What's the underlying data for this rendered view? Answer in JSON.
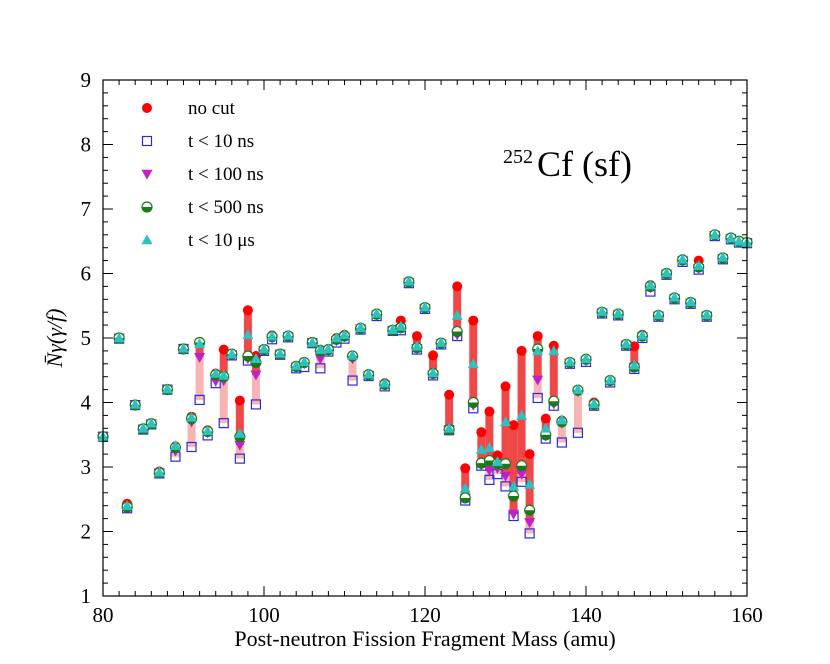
{
  "chart_data": {
    "type": "scatter",
    "title": "",
    "xlabel": "Post-neutron Fission Fragment Mass (amu)",
    "ylabel": "N̄γ(γ/f)",
    "xlim": [
      80,
      160
    ],
    "ylim": [
      1,
      9
    ],
    "xticks": [
      80,
      100,
      120,
      140,
      160
    ],
    "yticks": [
      1,
      2,
      3,
      4,
      5,
      6,
      7,
      8,
      9
    ],
    "annotation": {
      "superscript": "252",
      "text": "Cf (sf)"
    },
    "legend_position": "top-left",
    "x": [
      80,
      82,
      83,
      84,
      85,
      86,
      87,
      88,
      89,
      90,
      91,
      92,
      93,
      94,
      95,
      96,
      97,
      98,
      99,
      100,
      101,
      102,
      103,
      104,
      105,
      106,
      107,
      108,
      109,
      110,
      111,
      112,
      113,
      114,
      115,
      116,
      117,
      118,
      119,
      120,
      121,
      122,
      123,
      124,
      125,
      126,
      127,
      128,
      129,
      130,
      131,
      132,
      133,
      134,
      135,
      136,
      137,
      138,
      139,
      140,
      141,
      142,
      143,
      144,
      145,
      146,
      147,
      148,
      149,
      150,
      151,
      152,
      153,
      154,
      155,
      156,
      157,
      158,
      159,
      160
    ],
    "series": [
      {
        "name": "no cut",
        "marker": "filled-circle",
        "color": "#ff0000",
        "values": [
          3.47,
          5.0,
          2.43,
          3.97,
          3.6,
          3.68,
          2.93,
          4.21,
          3.32,
          4.84,
          3.78,
          4.92,
          3.57,
          4.45,
          4.82,
          4.75,
          4.03,
          5.43,
          4.72,
          4.83,
          5.04,
          4.76,
          5.04,
          4.57,
          4.63,
          4.93,
          4.82,
          4.83,
          5.0,
          5.05,
          4.73,
          5.16,
          4.44,
          5.38,
          4.3,
          5.12,
          5.27,
          5.88,
          5.03,
          5.48,
          4.73,
          4.92,
          4.12,
          5.8,
          2.98,
          5.27,
          3.54,
          3.86,
          3.18,
          4.25,
          3.65,
          4.8,
          3.2,
          5.03,
          3.75,
          4.88,
          3.72,
          4.62,
          4.2,
          4.68,
          4.0,
          5.4,
          4.35,
          5.38,
          4.9,
          4.87,
          5.05,
          5.82,
          5.35,
          6.0,
          5.62,
          6.22,
          5.56,
          6.2,
          5.35,
          6.6,
          6.25,
          6.55,
          6.5,
          6.48
        ]
      },
      {
        "name": "t < 10 ns",
        "marker": "open-square",
        "color": "#2a2ad8",
        "values": [
          3.47,
          4.99,
          2.36,
          3.96,
          3.58,
          3.66,
          2.9,
          4.2,
          3.16,
          4.83,
          3.31,
          4.04,
          3.49,
          4.3,
          3.68,
          4.73,
          3.13,
          4.65,
          3.97,
          4.8,
          4.98,
          4.74,
          5.01,
          4.53,
          4.55,
          4.92,
          4.53,
          4.79,
          4.93,
          4.99,
          4.34,
          5.13,
          4.41,
          5.34,
          4.25,
          5.11,
          5.12,
          5.85,
          4.82,
          5.45,
          4.42,
          4.9,
          3.57,
          5.03,
          2.48,
          3.91,
          3.02,
          2.8,
          2.89,
          2.7,
          2.24,
          2.77,
          1.97,
          4.07,
          3.44,
          3.95,
          3.38,
          4.6,
          3.53,
          4.63,
          3.95,
          5.38,
          4.31,
          5.35,
          4.88,
          4.52,
          5.0,
          5.72,
          5.33,
          5.98,
          5.6,
          6.18,
          5.53,
          6.06,
          5.33,
          6.58,
          6.22,
          6.53,
          6.48,
          6.47
        ]
      },
      {
        "name": "t < 100 ns",
        "marker": "filled-triangle-down",
        "color": "#c020c8",
        "values": [
          3.47,
          5.0,
          2.38,
          3.96,
          3.59,
          3.67,
          2.91,
          4.2,
          3.25,
          4.83,
          3.7,
          4.7,
          3.53,
          4.33,
          4.34,
          4.74,
          3.34,
          4.68,
          4.43,
          4.81,
          5.0,
          4.75,
          5.02,
          4.55,
          4.6,
          4.92,
          4.68,
          4.81,
          4.96,
          5.02,
          4.68,
          5.14,
          4.42,
          5.36,
          4.27,
          5.11,
          5.15,
          5.86,
          4.84,
          5.46,
          4.43,
          4.91,
          3.57,
          5.05,
          2.52,
          3.96,
          3.03,
          2.95,
          2.98,
          2.86,
          2.27,
          2.89,
          2.14,
          4.35,
          3.48,
          3.98,
          3.68,
          4.61,
          4.17,
          4.65,
          3.96,
          5.39,
          4.32,
          5.36,
          4.89,
          4.55,
          5.02,
          5.78,
          5.34,
          5.99,
          5.61,
          6.2,
          5.54,
          6.08,
          5.34,
          6.59,
          6.23,
          6.54,
          6.49,
          6.47
        ]
      },
      {
        "name": "t < 500 ns",
        "marker": "half-filled-circle",
        "color": "#1a7a1a",
        "values": [
          3.47,
          5.0,
          2.38,
          3.96,
          3.59,
          3.67,
          2.91,
          4.2,
          3.3,
          4.83,
          3.75,
          4.93,
          3.55,
          4.43,
          4.4,
          4.75,
          3.47,
          4.72,
          4.62,
          4.82,
          5.02,
          4.75,
          5.03,
          4.56,
          4.62,
          4.93,
          4.8,
          4.82,
          4.98,
          5.03,
          4.72,
          5.15,
          4.43,
          5.37,
          4.28,
          5.12,
          5.16,
          5.87,
          4.85,
          5.47,
          4.45,
          4.92,
          3.58,
          5.1,
          2.52,
          4.0,
          3.06,
          3.1,
          3.05,
          3.05,
          2.55,
          3.02,
          2.33,
          4.83,
          3.5,
          4.02,
          3.7,
          4.62,
          4.19,
          4.67,
          3.97,
          5.4,
          4.34,
          5.37,
          4.9,
          4.55,
          5.03,
          5.8,
          5.35,
          6.0,
          5.62,
          6.21,
          5.55,
          6.1,
          5.35,
          6.6,
          6.24,
          6.55,
          6.5,
          6.48
        ]
      },
      {
        "name": "t < 10 μs",
        "marker": "filled-triangle-up",
        "color": "#30c0c0",
        "values": [
          3.47,
          5.0,
          2.4,
          3.97,
          3.6,
          3.68,
          2.92,
          4.21,
          3.33,
          4.84,
          3.77,
          4.91,
          3.56,
          4.45,
          4.42,
          4.75,
          3.52,
          5.05,
          4.68,
          4.83,
          5.03,
          4.76,
          5.04,
          4.57,
          4.63,
          4.93,
          4.82,
          4.83,
          5.0,
          5.05,
          4.73,
          5.16,
          4.44,
          5.38,
          4.3,
          5.13,
          5.18,
          5.88,
          4.87,
          5.48,
          4.46,
          4.93,
          3.6,
          5.35,
          2.67,
          4.6,
          3.27,
          3.3,
          3.08,
          3.7,
          2.7,
          3.8,
          2.73,
          4.8,
          3.6,
          4.8,
          3.73,
          4.63,
          4.2,
          4.68,
          3.98,
          5.41,
          4.35,
          5.38,
          4.91,
          4.58,
          5.04,
          5.82,
          5.36,
          6.01,
          5.63,
          6.22,
          5.56,
          6.12,
          5.36,
          6.6,
          6.25,
          6.55,
          6.5,
          6.48
        ]
      }
    ]
  }
}
